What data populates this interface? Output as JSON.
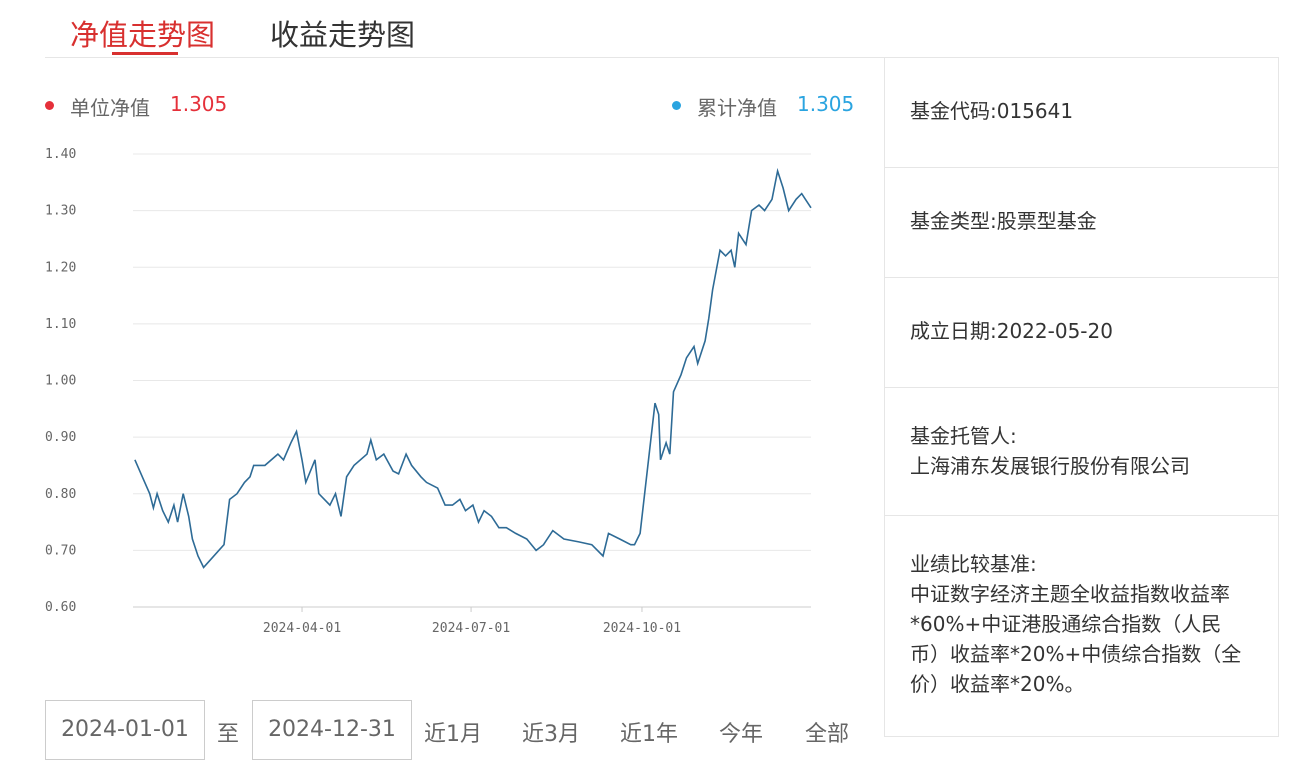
{
  "tabs": [
    "净值走势图",
    "收益走势图"
  ],
  "legend": [
    {
      "name": "单位净值",
      "value": 1.305,
      "color": "#e5303a"
    },
    {
      "name": "累计净值",
      "value": 1.305,
      "color": "#2aa4e0"
    }
  ],
  "chart_data": {
    "type": "line",
    "color": "#2e6b96",
    "x": [
      "2024-01-02",
      "2024-01-06",
      "2024-01-10",
      "2024-01-12",
      "2024-01-14",
      "2024-01-17",
      "2024-01-20",
      "2024-01-23",
      "2024-01-25",
      "2024-01-28",
      "2024-01-31",
      "2024-02-02",
      "2024-02-05",
      "2024-02-08",
      "2024-02-19",
      "2024-02-22",
      "2024-02-26",
      "2024-03-01",
      "2024-03-04",
      "2024-03-06",
      "2024-03-12",
      "2024-03-19",
      "2024-03-22",
      "2024-03-26",
      "2024-03-29",
      "2024-04-01",
      "2024-04-03",
      "2024-04-08",
      "2024-04-10",
      "2024-04-16",
      "2024-04-19",
      "2024-04-22",
      "2024-04-25",
      "2024-04-29",
      "2024-05-06",
      "2024-05-08",
      "2024-05-11",
      "2024-05-15",
      "2024-05-20",
      "2024-05-23",
      "2024-05-27",
      "2024-05-30",
      "2024-06-04",
      "2024-06-07",
      "2024-06-13",
      "2024-06-17",
      "2024-06-21",
      "2024-06-25",
      "2024-06-28",
      "2024-07-02",
      "2024-07-05",
      "2024-07-08",
      "2024-07-12",
      "2024-07-16",
      "2024-07-20",
      "2024-07-25",
      "2024-07-31",
      "2024-08-05",
      "2024-08-09",
      "2024-08-14",
      "2024-08-20",
      "2024-08-28",
      "2024-09-04",
      "2024-09-10",
      "2024-09-13",
      "2024-09-19",
      "2024-09-25",
      "2024-09-27",
      "2024-09-30",
      "2024-10-08",
      "2024-10-10",
      "2024-10-11",
      "2024-10-14",
      "2024-10-16",
      "2024-10-18",
      "2024-10-22",
      "2024-10-25",
      "2024-10-29",
      "2024-10-31",
      "2024-11-04",
      "2024-11-06",
      "2024-11-08",
      "2024-11-12",
      "2024-11-15",
      "2024-11-18",
      "2024-11-20",
      "2024-11-22",
      "2024-11-26",
      "2024-11-29",
      "2024-12-03",
      "2024-12-06",
      "2024-12-10",
      "2024-12-13",
      "2024-12-16",
      "2024-12-19",
      "2024-12-23",
      "2024-12-26",
      "2024-12-28",
      "2024-12-31"
    ],
    "values": [
      0.86,
      0.83,
      0.8,
      0.775,
      0.8,
      0.77,
      0.75,
      0.78,
      0.75,
      0.8,
      0.76,
      0.72,
      0.69,
      0.67,
      0.71,
      0.79,
      0.8,
      0.82,
      0.83,
      0.85,
      0.85,
      0.87,
      0.86,
      0.89,
      0.91,
      0.86,
      0.82,
      0.86,
      0.8,
      0.78,
      0.8,
      0.76,
      0.83,
      0.85,
      0.87,
      0.895,
      0.86,
      0.87,
      0.84,
      0.835,
      0.87,
      0.85,
      0.83,
      0.82,
      0.81,
      0.78,
      0.78,
      0.79,
      0.77,
      0.78,
      0.75,
      0.77,
      0.76,
      0.74,
      0.74,
      0.73,
      0.72,
      0.7,
      0.71,
      0.735,
      0.72,
      0.715,
      0.71,
      0.69,
      0.73,
      0.72,
      0.71,
      0.71,
      0.73,
      0.96,
      0.94,
      0.86,
      0.89,
      0.87,
      0.98,
      1.01,
      1.04,
      1.06,
      1.03,
      1.07,
      1.11,
      1.16,
      1.23,
      1.22,
      1.23,
      1.2,
      1.26,
      1.24,
      1.3,
      1.31,
      1.3,
      1.32,
      1.37,
      1.34,
      1.3,
      1.32,
      1.33,
      1.32,
      1.305
    ],
    "xlim": [
      "2024-01-01",
      "2024-12-31"
    ],
    "xticks": [
      "2024-04-01",
      "2024-07-01",
      "2024-10-01"
    ],
    "ylim": [
      0.6,
      1.4
    ],
    "yticks": [
      {
        "value": 0.6,
        "label": "0.60"
      },
      {
        "value": 0.7,
        "label": "0.70"
      },
      {
        "value": 0.8,
        "label": "0.80"
      },
      {
        "value": 0.9,
        "label": "0.90"
      },
      {
        "value": 1.0,
        "label": "1.00"
      },
      {
        "value": 1.1,
        "label": "1.10"
      },
      {
        "value": 1.2,
        "label": "1.20"
      },
      {
        "value": 1.3,
        "label": "1.30"
      },
      {
        "value": 1.4,
        "label": "1.40"
      }
    ],
    "grid": true
  },
  "date_range": {
    "start": "2024-01-01",
    "separator": "至",
    "end": "2024-12-31"
  },
  "periods": [
    "近1月",
    "近3月",
    "近1年",
    "今年",
    "全部"
  ],
  "info": {
    "code": "基金代码:015641",
    "type": "基金类型:股票型基金",
    "founded": "成立日期:2022-05-20",
    "custodian_label": "基金托管人:",
    "custodian": "上海浦东发展银行股份有限公司",
    "benchmark_label": "业绩比较基准:",
    "benchmark": "中证数字经济主题全收益指数收益率*60%+中证港股通综合指数（人民币）收益率*20%+中债综合指数（全价）收益率*20%。"
  }
}
